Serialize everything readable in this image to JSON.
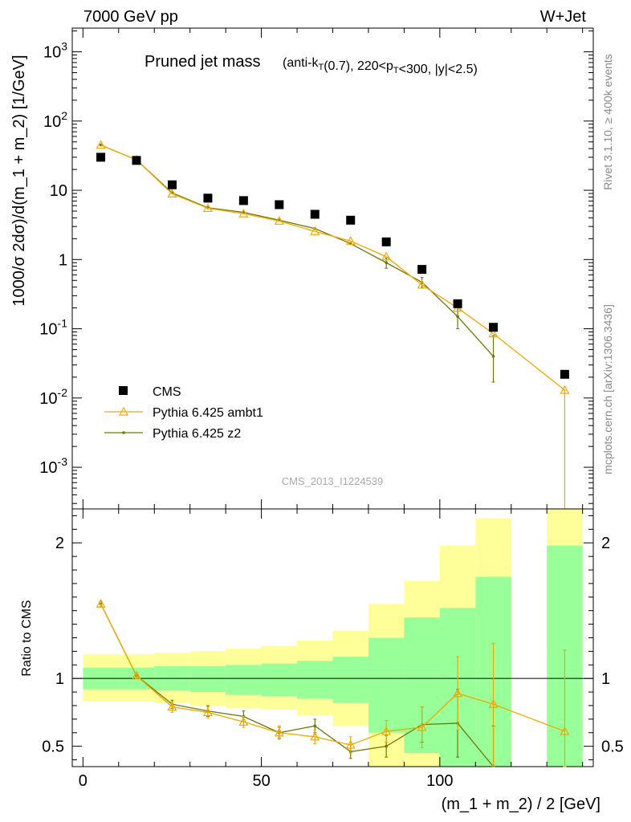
{
  "header": {
    "energy_label": "7000 GeV pp",
    "process_label": "W+Jet"
  },
  "side_labels": {
    "rivet": "Rivet 3.1.10, ≥ 400k events",
    "mcplots": "mcplots.cern.ch [arXiv:1306.3436]"
  },
  "analysis_id": "CMS_2013_I1224539",
  "colors": {
    "cms": "#000000",
    "ambt1": "#f0a800",
    "z2": "#6b7a0a",
    "band_inner": "#99ff99",
    "band_outer": "#ffff99"
  },
  "chart_data": [
    {
      "type": "scatter",
      "panel": "main",
      "title": "Pruned jet mass",
      "title_detail": "(anti-k_T(0.7), 220<p_T<300, |y|<2.5)",
      "ylabel": "1000/σ 2dσ)/d(m_1 + m_2) [1/GeV]",
      "yscale": "log",
      "ylim": [
        0.00025,
        2200
      ],
      "xlim": [
        -3,
        143
      ],
      "yticks": [
        "10^-3",
        "10^-2",
        "10^-1",
        "1",
        "10",
        "10^2",
        "10^3"
      ],
      "legend": {
        "position": "lower-left",
        "entries": [
          "CMS",
          "Pythia 6.425 ambt1",
          "Pythia 6.425 z2"
        ]
      },
      "x": [
        5,
        15,
        25,
        35,
        45,
        55,
        65,
        75,
        85,
        95,
        105,
        115,
        135
      ],
      "series": [
        {
          "name": "CMS",
          "style": "marker",
          "values": [
            30,
            27,
            12,
            7.7,
            7.1,
            6.2,
            4.5,
            3.7,
            1.8,
            0.72,
            0.23,
            0.105,
            0.022
          ]
        },
        {
          "name": "Pythia 6.425 ambt1",
          "style": "line-triangle",
          "values": [
            45,
            27.5,
            8.9,
            5.5,
            4.6,
            3.6,
            2.55,
            1.85,
            1.1,
            0.43,
            0.2,
            0.085,
            0.013
          ],
          "err_lo": [
            0,
            0,
            0,
            0,
            0,
            0,
            0,
            0,
            0,
            0,
            0,
            0,
            0.013
          ],
          "err_hi": [
            0,
            0,
            0,
            0,
            0,
            0,
            0,
            0,
            0,
            0,
            0,
            0,
            0
          ]
        },
        {
          "name": "Pythia 6.425 z2",
          "style": "line-dot",
          "x": [
            5,
            15,
            25,
            35,
            45,
            55,
            65,
            75,
            85,
            95,
            105,
            115
          ],
          "values": [
            45,
            27.5,
            9.2,
            5.6,
            4.8,
            3.7,
            2.8,
            1.7,
            0.9,
            0.47,
            0.15,
            0.04
          ],
          "err_lo": [
            0,
            0,
            0,
            0,
            0,
            0,
            0,
            0,
            0.15,
            0.08,
            0.05,
            0.023
          ],
          "err_hi": [
            0,
            0,
            0,
            0,
            0,
            0,
            0,
            0,
            0.15,
            0.08,
            0.06,
            0.04
          ]
        }
      ]
    },
    {
      "type": "line",
      "panel": "ratio",
      "ylabel": "Ratio to CMS",
      "xlabel": "(m_1 + m_2) / 2 [GeV]",
      "ylim": [
        0.35,
        2.25
      ],
      "xlim": [
        -3,
        143
      ],
      "yticks": [
        0.5,
        1,
        2
      ],
      "xticks": [
        0,
        50,
        100
      ],
      "bands": {
        "edges": [
          0,
          10,
          20,
          30,
          40,
          50,
          60,
          70,
          80,
          90,
          100,
          110,
          120,
          130,
          140
        ],
        "inner": [
          [
            0.92,
            1.08
          ],
          [
            0.92,
            1.08
          ],
          [
            0.91,
            1.09
          ],
          [
            0.9,
            1.09
          ],
          [
            0.88,
            1.1
          ],
          [
            0.87,
            1.11
          ],
          [
            0.85,
            1.13
          ],
          [
            0.82,
            1.16
          ],
          [
            0.6,
            1.3
          ],
          [
            0.45,
            1.45
          ],
          [
            0.3,
            1.52
          ],
          [
            0.15,
            1.75
          ],
          null,
          [
            0.05,
            1.98
          ]
        ],
        "outer": [
          [
            0.83,
            1.18
          ],
          [
            0.83,
            1.18
          ],
          [
            0.82,
            1.19
          ],
          [
            0.8,
            1.2
          ],
          [
            0.78,
            1.22
          ],
          [
            0.77,
            1.24
          ],
          [
            0.73,
            1.28
          ],
          [
            0.65,
            1.35
          ],
          [
            0.35,
            1.55
          ],
          [
            0.18,
            1.72
          ],
          [
            0.05,
            1.98
          ],
          [
            0.05,
            2.18
          ],
          null,
          [
            0.05,
            2.25
          ]
        ]
      },
      "series": [
        {
          "name": "Pythia 6.425 ambt1",
          "x": [
            5,
            15,
            25,
            35,
            45,
            55,
            65,
            75,
            85,
            95,
            105,
            115,
            135
          ],
          "values": [
            1.55,
            1.02,
            0.79,
            0.75,
            0.68,
            0.6,
            0.57,
            0.51,
            0.61,
            0.64,
            0.89,
            0.81,
            0.61
          ],
          "err": [
            0.02,
            0.02,
            0.04,
            0.04,
            0.04,
            0.05,
            0.05,
            0.06,
            0.08,
            0.15,
            0.27,
            0.45,
            0.6
          ]
        },
        {
          "name": "Pythia 6.425 z2",
          "x": [
            5,
            15,
            25,
            35,
            45,
            55,
            65,
            75,
            85,
            95,
            105,
            115
          ],
          "values": [
            1.55,
            1.02,
            0.81,
            0.76,
            0.72,
            0.6,
            0.65,
            0.46,
            0.5,
            0.66,
            0.67,
            0.25
          ],
          "err": [
            0.02,
            0.02,
            0.03,
            0.04,
            0.04,
            0.04,
            0.05,
            0.05,
            0.08,
            0.13,
            0.25,
            0.4
          ]
        }
      ]
    }
  ]
}
